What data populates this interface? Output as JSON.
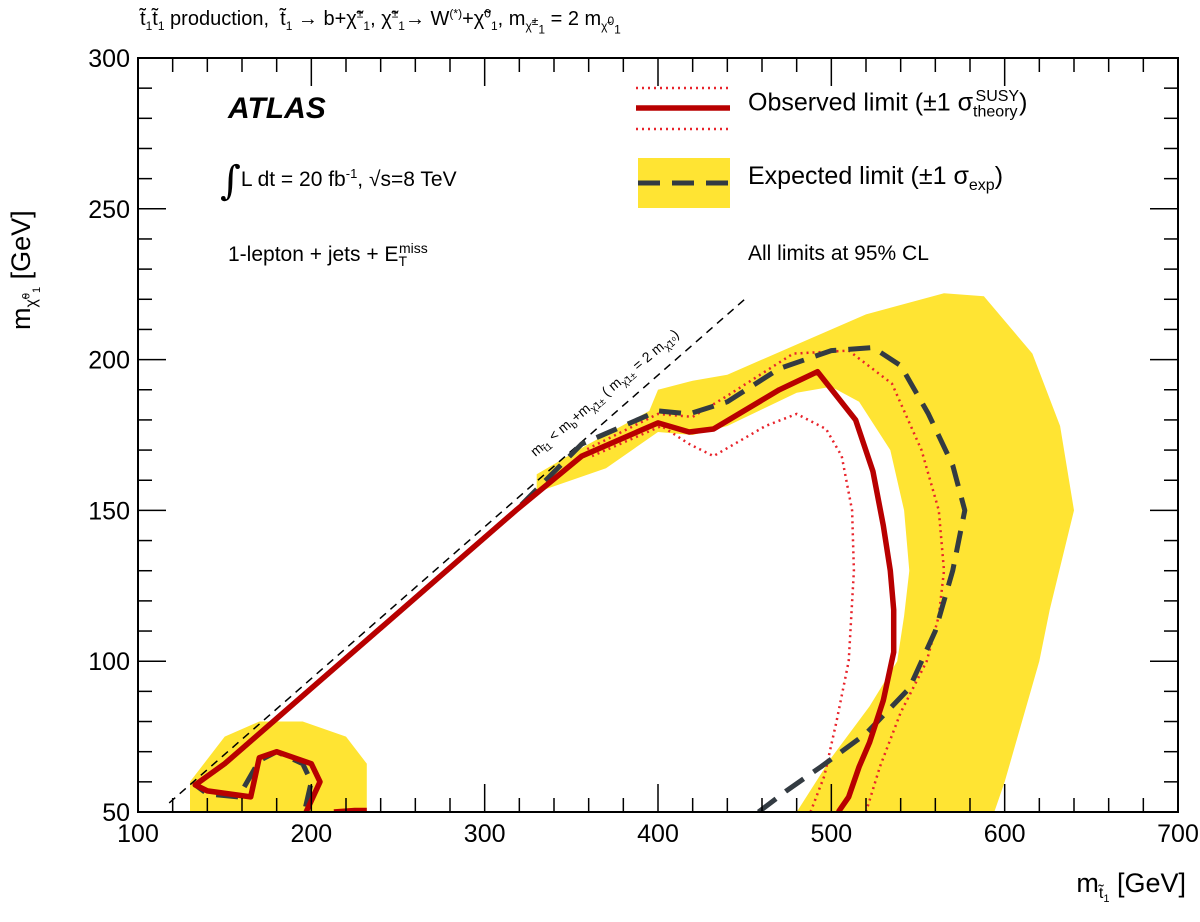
{
  "chart_data": {
    "type": "line",
    "title": "t̃₁t̃₁ production, t̃₁ → b+χ̃₁±, χ̃₁± → W(*)+χ̃₁⁰, mχ̃₁± = 2 mχ̃₁⁰",
    "xlabel": "m t̃1 [GeV]",
    "ylabel": "m χ̃1⁰ [GeV]",
    "xlim": [
      100,
      700
    ],
    "ylim": [
      50,
      300
    ],
    "x_ticks": [
      "100",
      "200",
      "300",
      "400",
      "500",
      "600",
      "700"
    ],
    "y_ticks": [
      "50",
      "100",
      "150",
      "200",
      "250",
      "300"
    ],
    "legend_position": "top-right",
    "annotations": {
      "experiment": "ATLAS",
      "luminosity": "∫L dt = 20 fb⁻¹, √s=8 TeV",
      "channel": "1-lepton + jets + E_T^miss",
      "confidence": "All limits at 95% CL",
      "diagonal": "m t̃1 < m b + m χ̃1± ( m χ̃1± = 2 m χ̃1⁰ )"
    },
    "series": [
      {
        "name": "Observed limit (±1 σ_theory^SUSY)",
        "style": "solid",
        "points": [
          [
            504,
            50
          ],
          [
            510,
            55
          ],
          [
            516,
            65
          ],
          [
            522,
            73
          ],
          [
            530,
            87
          ],
          [
            536,
            103
          ],
          [
            536,
            117
          ],
          [
            534,
            130
          ],
          [
            530,
            145
          ],
          [
            524,
            163
          ],
          [
            514,
            180
          ],
          [
            492,
            196
          ],
          [
            470,
            190
          ],
          [
            432,
            177
          ],
          [
            418,
            176
          ],
          [
            400,
            179
          ],
          [
            356,
            168
          ],
          [
            318,
            150
          ],
          [
            280,
            131
          ],
          [
            240,
            111
          ],
          [
            200,
            91
          ],
          [
            180,
            81
          ],
          [
            160,
            71
          ],
          [
            150,
            66
          ],
          [
            133,
            59
          ],
          [
            140,
            57
          ],
          [
            165,
            55
          ],
          [
            170,
            68
          ],
          [
            180,
            70
          ],
          [
            200,
            66
          ],
          [
            205,
            60
          ],
          [
            197,
            50
          ]
        ]
      },
      {
        "name": "Observed island (low mass)",
        "style": "solid",
        "points": [
          [
            213,
            50
          ],
          [
            225,
            50.5
          ],
          [
            232,
            50.5
          ]
        ]
      },
      {
        "name": "Observed +1σ theory",
        "style": "dotted",
        "points": [
          [
            520,
            50
          ],
          [
            528,
            65
          ],
          [
            540,
            83
          ],
          [
            555,
            100
          ],
          [
            562,
            115
          ],
          [
            565,
            130
          ],
          [
            562,
            150
          ],
          [
            552,
            170
          ],
          [
            535,
            192
          ],
          [
            510,
            203
          ],
          [
            478,
            202
          ],
          [
            440,
            188
          ],
          [
            420,
            181
          ],
          [
            400,
            182
          ],
          [
            358,
            170
          ]
        ]
      },
      {
        "name": "Observed -1σ theory",
        "style": "dotted",
        "points": [
          [
            488,
            50
          ],
          [
            496,
            62
          ],
          [
            503,
            80
          ],
          [
            510,
            100
          ],
          [
            513,
            130
          ],
          [
            512,
            150
          ],
          [
            506,
            168
          ],
          [
            497,
            177
          ],
          [
            480,
            182
          ],
          [
            462,
            178
          ],
          [
            432,
            168
          ],
          [
            418,
            172
          ],
          [
            402,
            178
          ],
          [
            362,
            168
          ]
        ]
      },
      {
        "name": "Expected limit (±1 σ_exp)",
        "style": "dashed",
        "points": [
          [
            458,
            50
          ],
          [
            474,
            57
          ],
          [
            494,
            65
          ],
          [
            520,
            76
          ],
          [
            545,
            91
          ],
          [
            560,
            110
          ],
          [
            570,
            130
          ],
          [
            577,
            150
          ],
          [
            570,
            165
          ],
          [
            556,
            182
          ],
          [
            540,
            198
          ],
          [
            524,
            204
          ],
          [
            500,
            203
          ],
          [
            470,
            197
          ],
          [
            440,
            186
          ],
          [
            418,
            182
          ],
          [
            400,
            183
          ],
          [
            356,
            172
          ],
          [
            318,
            150
          ],
          [
            280,
            131
          ],
          [
            240,
            111
          ],
          [
            200,
            91
          ],
          [
            180,
            81
          ],
          [
            160,
            71
          ],
          [
            150,
            66
          ],
          [
            133,
            59
          ],
          [
            140,
            56
          ],
          [
            158,
            55
          ],
          [
            170,
            67
          ],
          [
            180,
            70
          ],
          [
            195,
            66
          ],
          [
            200,
            60
          ],
          [
            196,
            50
          ]
        ]
      },
      {
        "name": "Expected ±1σ band",
        "style": "band",
        "points": [
          [
            480,
            50
          ],
          [
            500,
            68
          ],
          [
            522,
            85
          ],
          [
            538,
            100
          ],
          [
            542,
            115
          ],
          [
            545,
            130
          ],
          [
            542,
            150
          ],
          [
            534,
            170
          ],
          [
            516,
            186
          ],
          [
            500,
            191
          ],
          [
            480,
            189
          ],
          [
            440,
            178
          ],
          [
            420,
            175
          ],
          [
            400,
            176
          ],
          [
            370,
            164
          ],
          [
            330,
            156
          ],
          [
            330,
            162
          ],
          [
            360,
            172
          ],
          [
            395,
            183
          ],
          [
            400,
            190
          ],
          [
            420,
            193
          ],
          [
            440,
            195
          ],
          [
            480,
            205
          ],
          [
            520,
            215
          ],
          [
            565,
            222
          ],
          [
            588,
            221
          ],
          [
            616,
            202
          ],
          [
            632,
            178
          ],
          [
            640,
            150
          ],
          [
            626,
            117
          ],
          [
            620,
            100
          ],
          [
            610,
            80
          ],
          [
            600,
            60
          ],
          [
            594,
            50
          ]
        ],
        "island": [
          [
            130,
            50
          ],
          [
            130,
            60
          ],
          [
            150,
            75
          ],
          [
            170,
            80
          ],
          [
            195,
            80
          ],
          [
            220,
            75
          ],
          [
            232,
            66
          ],
          [
            232,
            50
          ]
        ]
      }
    ],
    "colors": {
      "observed": "#b80000",
      "observed_band": "#e8232b",
      "expected": "#333b42",
      "expected_band": "#ffe433",
      "diagonal": "#000000"
    }
  }
}
